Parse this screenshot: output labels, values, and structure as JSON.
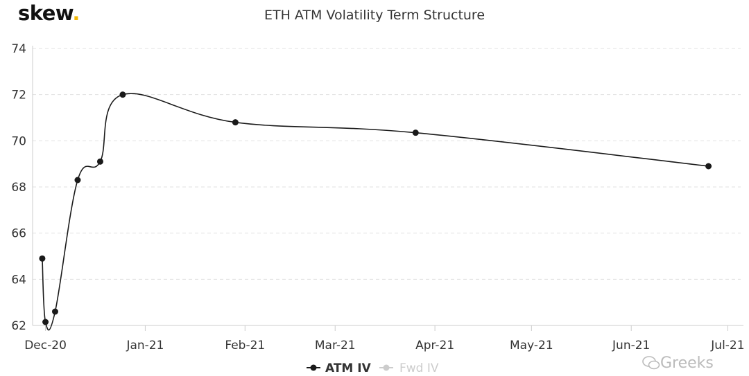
{
  "brand": {
    "name": "skew",
    "dot": "."
  },
  "watermark": {
    "text": "Greeks",
    "icon": "wechat-icon"
  },
  "colors": {
    "line": "#1a1a1a",
    "grid": "#e0e0e0",
    "axis": "#cccccc",
    "tick_text": "#333333",
    "legend_active": "#333333",
    "legend_inactive": "#cccccc",
    "brand_dot": "#f2b705"
  },
  "chart_data": {
    "type": "line",
    "title": "ETH ATM Volatility Term Structure",
    "xlabel": "",
    "ylabel": "",
    "ylim": [
      62,
      74
    ],
    "xlim": [
      "2020-11-27",
      "2021-07-05"
    ],
    "yticks": [
      62,
      64,
      66,
      68,
      70,
      72,
      74
    ],
    "xticks": [
      {
        "label": "Dec-20",
        "date": "2020-12-01"
      },
      {
        "label": "Jan-21",
        "date": "2021-01-01"
      },
      {
        "label": "Feb-21",
        "date": "2021-02-01"
      },
      {
        "label": "Mar-21",
        "date": "2021-03-01"
      },
      {
        "label": "Apr-21",
        "date": "2021-04-01"
      },
      {
        "label": "May-21",
        "date": "2021-05-01"
      },
      {
        "label": "Jun-21",
        "date": "2021-06-01"
      },
      {
        "label": "Jul-21",
        "date": "2021-07-01"
      }
    ],
    "grid": "horizontal dashed",
    "legend_position": "bottom-center",
    "series": [
      {
        "name": "ATM IV",
        "active": true,
        "x": [
          "2020-11-30",
          "2020-12-01",
          "2020-12-04",
          "2020-12-11",
          "2020-12-18",
          "2020-12-25",
          "2021-01-29",
          "2021-03-26",
          "2021-06-25"
        ],
        "y": [
          64.9,
          62.15,
          62.6,
          68.3,
          69.1,
          72.0,
          70.8,
          70.35,
          68.9
        ]
      },
      {
        "name": "Fwd IV",
        "active": false,
        "x": [],
        "y": []
      }
    ]
  }
}
